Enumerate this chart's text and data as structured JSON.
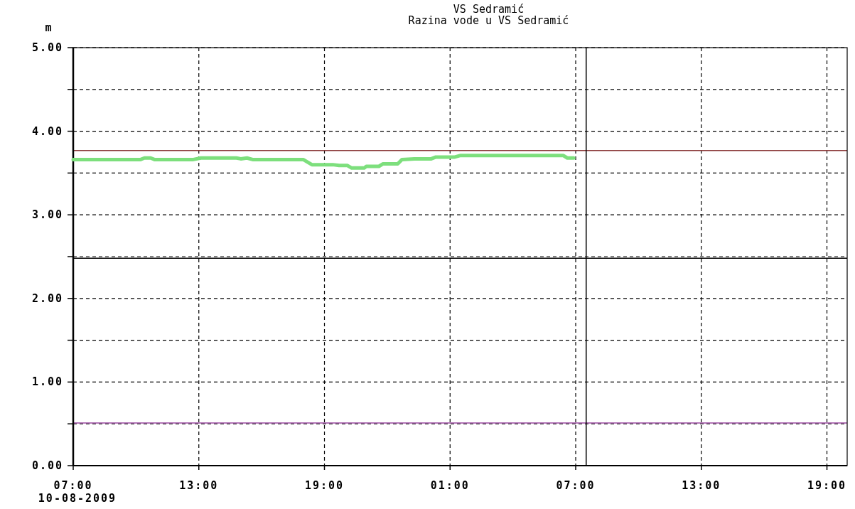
{
  "chart_data": {
    "type": "line",
    "title": "VS Sedramić",
    "subtitle": "Razina vode u VS Sedramić",
    "ylabel": "m",
    "annotations": [
      "10-08-2009"
    ],
    "xlim": [
      "2009-08-10T07:00",
      "2009-08-11T19:58"
    ],
    "ylim": [
      0,
      5
    ],
    "xticks": [
      {
        "value": "2009-08-10T07:00",
        "label": "07:00"
      },
      {
        "value": "2009-08-10T13:00",
        "label": "13:00"
      },
      {
        "value": "2009-08-10T19:00",
        "label": "19:00"
      },
      {
        "value": "2009-08-11T01:00",
        "label": "01:00"
      },
      {
        "value": "2009-08-11T07:00",
        "label": "07:00"
      },
      {
        "value": "2009-08-11T13:00",
        "label": "13:00"
      },
      {
        "value": "2009-08-11T19:00",
        "label": "19:00"
      }
    ],
    "yticks": [
      {
        "value": 0,
        "label": "0.00"
      },
      {
        "value": 0.5,
        "label": null
      },
      {
        "value": 1,
        "label": "1.00"
      },
      {
        "value": 1.5,
        "label": null
      },
      {
        "value": 2,
        "label": "2.00"
      },
      {
        "value": 2.5,
        "label": null
      },
      {
        "value": 3,
        "label": "3.00"
      },
      {
        "value": 3.5,
        "label": null
      },
      {
        "value": 4,
        "label": "4.00"
      },
      {
        "value": 4.5,
        "label": null
      },
      {
        "value": 5,
        "label": "5.00"
      }
    ],
    "grid": true,
    "marker": "none",
    "line_style": "solid",
    "series": [
      {
        "color": "#7ddf7d",
        "x": [
          "2009-08-10T07:00",
          "2009-08-10T10:12",
          "2009-08-10T10:24",
          "2009-08-10T10:42",
          "2009-08-10T10:54",
          "2009-08-10T12:42",
          "2009-08-10T13:06",
          "2009-08-10T14:48",
          "2009-08-10T15:00",
          "2009-08-10T15:18",
          "2009-08-10T15:36",
          "2009-08-10T18:00",
          "2009-08-10T18:24",
          "2009-08-10T19:24",
          "2009-08-10T19:42",
          "2009-08-10T20:06",
          "2009-08-10T20:18",
          "2009-08-10T20:54",
          "2009-08-10T21:00",
          "2009-08-10T21:36",
          "2009-08-10T21:48",
          "2009-08-10T22:30",
          "2009-08-10T22:42",
          "2009-08-10T23:18",
          "2009-08-11T00:06",
          "2009-08-11T00:18",
          "2009-08-11T01:00",
          "2009-08-11T01:12",
          "2009-08-11T01:30",
          "2009-08-11T06:24",
          "2009-08-11T06:36",
          "2009-08-11T06:54"
        ],
        "values": [
          3.66,
          3.66,
          3.68,
          3.68,
          3.66,
          3.66,
          3.68,
          3.68,
          3.67,
          3.68,
          3.66,
          3.66,
          3.6,
          3.6,
          3.59,
          3.59,
          3.56,
          3.56,
          3.58,
          3.58,
          3.61,
          3.61,
          3.66,
          3.67,
          3.67,
          3.69,
          3.69,
          3.69,
          3.71,
          3.71,
          3.68,
          3.68
        ]
      }
    ],
    "ref_lines": [
      {
        "axis": "y",
        "value": 3.77,
        "color": "#8b3a3a",
        "line_style": "solid"
      },
      {
        "axis": "y",
        "value": 0.51,
        "color": "#9b4aa0",
        "line_style": "solid"
      },
      {
        "axis": "y",
        "value": 2.48,
        "color": "#000000",
        "line_style": "solid"
      },
      {
        "axis": "x",
        "value": "2009-08-11T07:30",
        "color": "#000000",
        "line_style": "solid"
      }
    ]
  }
}
